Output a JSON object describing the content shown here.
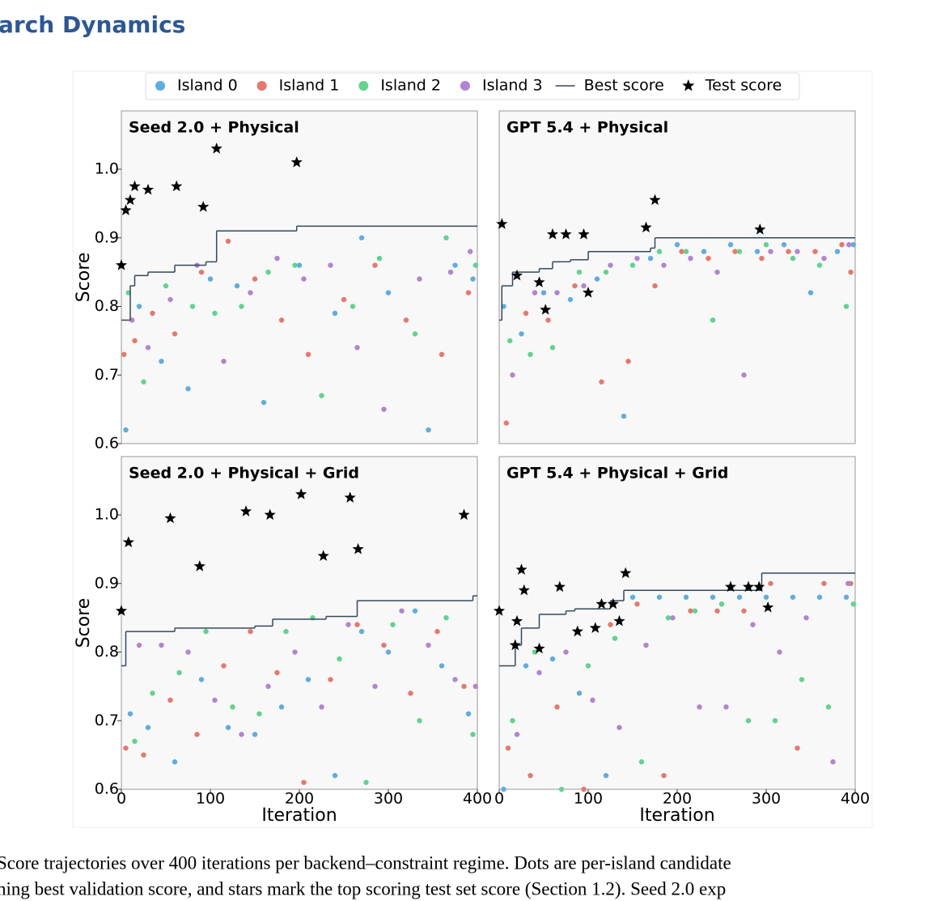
{
  "header": {
    "title": "arch Dynamics"
  },
  "chart_data": [
    {
      "type": "scatter",
      "title": "Seed 2.0 + Physical",
      "xlim": [
        0,
        400
      ],
      "ylim": [
        0.6,
        1.085
      ],
      "yticks": [
        0.6,
        0.7,
        0.8,
        0.9,
        {
          "value": 1,
          "label": "1.0"
        }
      ],
      "ylabel": "Score",
      "series": [
        {
          "name": "Island 0",
          "color": "#5dade2",
          "x": [
            5,
            20,
            45,
            75,
            100,
            130,
            160,
            200,
            240,
            270,
            300,
            345,
            375,
            395
          ],
          "values": [
            0.62,
            0.8,
            0.72,
            0.68,
            0.84,
            0.83,
            0.66,
            0.86,
            0.79,
            0.9,
            0.82,
            0.62,
            0.86,
            0.84
          ]
        },
        {
          "name": "Island 1",
          "color": "#e8776b",
          "x": [
            3,
            15,
            35,
            60,
            90,
            120,
            150,
            180,
            210,
            250,
            285,
            320,
            360,
            390
          ],
          "values": [
            0.73,
            0.75,
            0.79,
            0.76,
            0.85,
            0.895,
            0.84,
            0.78,
            0.73,
            0.81,
            0.86,
            0.78,
            0.73,
            0.82
          ]
        },
        {
          "name": "Island 2",
          "color": "#5fd48c",
          "x": [
            8,
            25,
            50,
            80,
            105,
            135,
            165,
            195,
            225,
            260,
            290,
            330,
            365,
            398
          ],
          "values": [
            0.82,
            0.69,
            0.83,
            0.8,
            0.79,
            0.8,
            0.85,
            0.86,
            0.67,
            0.8,
            0.87,
            0.76,
            0.9,
            0.86
          ]
        },
        {
          "name": "Island 3",
          "color": "#b183d4",
          "x": [
            12,
            30,
            55,
            85,
            115,
            145,
            175,
            205,
            235,
            265,
            295,
            335,
            370,
            392
          ],
          "values": [
            0.78,
            0.74,
            0.81,
            0.86,
            0.72,
            0.82,
            0.87,
            0.84,
            0.86,
            0.74,
            0.65,
            0.84,
            0.85,
            0.88
          ]
        },
        {
          "name": "Best score",
          "color": "#34495e",
          "mark": "step",
          "x": [
            0,
            10,
            15,
            30,
            60,
            95,
            107,
            197
          ],
          "values": [
            0.78,
            0.83,
            0.845,
            0.85,
            0.86,
            0.865,
            0.91,
            0.917
          ]
        },
        {
          "name": "Test score",
          "color": "#000000",
          "mark": "star",
          "x": [
            0,
            5,
            10,
            15,
            30,
            62,
            92,
            107,
            197
          ],
          "values": [
            0.86,
            0.94,
            0.955,
            0.975,
            0.97,
            0.975,
            0.945,
            1.03,
            1.01
          ]
        }
      ]
    },
    {
      "type": "scatter",
      "title": "GPT 5.4 + Physical",
      "xlim": [
        0,
        400
      ],
      "ylim": [
        0.6,
        1.085
      ],
      "series": [
        {
          "name": "Island 0",
          "color": "#5dade2",
          "x": [
            5,
            25,
            50,
            80,
            110,
            140,
            170,
            200,
            230,
            260,
            290,
            320,
            350,
            380,
            398
          ],
          "values": [
            0.8,
            0.76,
            0.82,
            0.81,
            0.84,
            0.64,
            0.87,
            0.89,
            0.88,
            0.89,
            0.88,
            0.89,
            0.82,
            0.88,
            0.89
          ]
        },
        {
          "name": "Island 1",
          "color": "#e8776b",
          "x": [
            8,
            30,
            55,
            85,
            115,
            145,
            175,
            205,
            235,
            265,
            295,
            325,
            355,
            385,
            395
          ],
          "values": [
            0.63,
            0.79,
            0.78,
            0.83,
            0.69,
            0.72,
            0.83,
            0.88,
            0.87,
            0.88,
            0.87,
            0.88,
            0.88,
            0.89,
            0.85
          ]
        },
        {
          "name": "Island 2",
          "color": "#5fd48c",
          "x": [
            12,
            35,
            60,
            90,
            120,
            150,
            180,
            210,
            240,
            270,
            300,
            330,
            360,
            390
          ],
          "values": [
            0.75,
            0.73,
            0.74,
            0.85,
            0.85,
            0.86,
            0.88,
            0.88,
            0.78,
            0.88,
            0.89,
            0.87,
            0.86,
            0.8
          ]
        },
        {
          "name": "Island 3",
          "color": "#b183d4",
          "x": [
            15,
            40,
            65,
            95,
            125,
            155,
            185,
            215,
            245,
            275,
            305,
            335,
            365,
            393
          ],
          "values": [
            0.7,
            0.82,
            0.82,
            0.83,
            0.86,
            0.87,
            0.86,
            0.87,
            0.85,
            0.7,
            0.88,
            0.88,
            0.87,
            0.89
          ]
        },
        {
          "name": "Best score",
          "color": "#34495e",
          "mark": "step",
          "x": [
            0,
            3,
            15,
            45,
            60,
            80,
            100,
            170,
            175
          ],
          "values": [
            0.78,
            0.83,
            0.85,
            0.855,
            0.865,
            0.868,
            0.88,
            0.885,
            0.9
          ]
        },
        {
          "name": "Test score",
          "color": "#000000",
          "mark": "star",
          "x": [
            3,
            20,
            45,
            52,
            60,
            75,
            95,
            100,
            165,
            175,
            293
          ],
          "values": [
            0.92,
            0.845,
            0.835,
            0.795,
            0.905,
            0.905,
            0.905,
            0.82,
            0.915,
            0.955,
            0.912
          ]
        }
      ]
    },
    {
      "type": "scatter",
      "title": "Seed 2.0 + Physical + Grid",
      "xlim": [
        0,
        400
      ],
      "ylim": [
        0.6,
        1.085
      ],
      "yticks": [
        0.6,
        0.7,
        0.8,
        0.9,
        {
          "value": 1,
          "label": "1.0"
        }
      ],
      "ylabel": "Score",
      "xticks": [
        0,
        100,
        200,
        300,
        400
      ],
      "xlabel": "Iteration",
      "series": [
        {
          "name": "Island 0",
          "color": "#5dade2",
          "x": [
            10,
            30,
            60,
            90,
            120,
            150,
            180,
            210,
            240,
            270,
            300,
            330,
            360,
            390
          ],
          "values": [
            0.71,
            0.69,
            0.64,
            0.76,
            0.69,
            0.68,
            0.72,
            0.76,
            0.62,
            0.83,
            0.8,
            0.86,
            0.78,
            0.71
          ]
        },
        {
          "name": "Island 1",
          "color": "#e8776b",
          "x": [
            5,
            25,
            55,
            85,
            115,
            145,
            175,
            205,
            235,
            265,
            295,
            325,
            355,
            385
          ],
          "values": [
            0.66,
            0.65,
            0.73,
            0.68,
            0.78,
            0.83,
            0.77,
            0.61,
            0.76,
            0.84,
            0.81,
            0.74,
            0.83,
            0.75
          ]
        },
        {
          "name": "Island 2",
          "color": "#5fd48c",
          "x": [
            15,
            35,
            65,
            95,
            125,
            155,
            185,
            215,
            245,
            275,
            305,
            335,
            365,
            395
          ],
          "values": [
            0.67,
            0.74,
            0.77,
            0.83,
            0.72,
            0.71,
            0.83,
            0.85,
            0.79,
            0.61,
            0.84,
            0.7,
            0.85,
            0.68
          ]
        },
        {
          "name": "Island 3",
          "color": "#b183d4",
          "x": [
            20,
            45,
            75,
            105,
            135,
            165,
            195,
            225,
            255,
            285,
            315,
            345,
            375,
            398
          ],
          "values": [
            0.81,
            0.81,
            0.8,
            0.73,
            0.68,
            0.75,
            0.8,
            0.72,
            0.84,
            0.75,
            0.86,
            0.81,
            0.76,
            0.75
          ]
        },
        {
          "name": "Best score",
          "color": "#34495e",
          "mark": "step",
          "x": [
            0,
            5,
            60,
            150,
            170,
            230,
            265,
            395
          ],
          "values": [
            0.78,
            0.83,
            0.835,
            0.838,
            0.848,
            0.852,
            0.875,
            0.882
          ]
        },
        {
          "name": "Test score",
          "color": "#000000",
          "mark": "star",
          "x": [
            0,
            8,
            55,
            88,
            140,
            167,
            202,
            227,
            257,
            266,
            385
          ],
          "values": [
            0.86,
            0.96,
            0.995,
            0.925,
            1.005,
            1.0,
            1.03,
            0.94,
            1.025,
            0.95,
            1.0
          ]
        }
      ]
    },
    {
      "type": "scatter",
      "title": "GPT 5.4 + Physical + Grid",
      "xlim": [
        0,
        400
      ],
      "ylim": [
        0.6,
        1.085
      ],
      "xticks": [
        0,
        100,
        200,
        300,
        400
      ],
      "xlabel": "Iteration",
      "series": [
        {
          "name": "Island 0",
          "color": "#5dade2",
          "x": [
            5,
            30,
            60,
            90,
            120,
            150,
            180,
            210,
            240,
            270,
            300,
            330,
            360,
            390
          ],
          "values": [
            0.6,
            0.78,
            0.79,
            0.74,
            0.62,
            0.88,
            0.88,
            0.88,
            0.88,
            0.88,
            0.88,
            0.88,
            0.88,
            0.88
          ]
        },
        {
          "name": "Island 1",
          "color": "#e8776b",
          "x": [
            10,
            35,
            65,
            95,
            125,
            155,
            185,
            215,
            245,
            275,
            305,
            335,
            365,
            395
          ],
          "values": [
            0.66,
            0.62,
            0.72,
            0.6,
            0.84,
            0.87,
            0.62,
            0.86,
            0.86,
            0.86,
            0.9,
            0.66,
            0.9,
            0.9
          ]
        },
        {
          "name": "Island 2",
          "color": "#5fd48c",
          "x": [
            15,
            40,
            70,
            100,
            130,
            160,
            190,
            220,
            250,
            280,
            310,
            340,
            370,
            398
          ],
          "values": [
            0.7,
            0.8,
            0.6,
            0.78,
            0.82,
            0.64,
            0.85,
            0.86,
            0.87,
            0.7,
            0.7,
            0.76,
            0.72,
            0.87
          ]
        },
        {
          "name": "Island 3",
          "color": "#b183d4",
          "x": [
            20,
            45,
            75,
            105,
            135,
            165,
            195,
            225,
            255,
            285,
            315,
            345,
            375,
            392
          ],
          "values": [
            0.68,
            0.77,
            0.8,
            0.73,
            0.69,
            0.81,
            0.85,
            0.72,
            0.72,
            0.84,
            0.8,
            0.85,
            0.64,
            0.9
          ]
        },
        {
          "name": "Best score",
          "color": "#34495e",
          "mark": "step",
          "x": [
            0,
            18,
            25,
            45,
            75,
            85,
            125,
            140,
            295
          ],
          "values": [
            0.78,
            0.81,
            0.835,
            0.855,
            0.86,
            0.863,
            0.875,
            0.89,
            0.915
          ]
        },
        {
          "name": "Test score",
          "color": "#000000",
          "mark": "star",
          "x": [
            0,
            18,
            20,
            25,
            28,
            45,
            68,
            88,
            108,
            115,
            128,
            135,
            142,
            260,
            280,
            292,
            302
          ],
          "values": [
            0.86,
            0.81,
            0.845,
            0.92,
            0.89,
            0.805,
            0.895,
            0.83,
            0.835,
            0.87,
            0.87,
            0.845,
            0.915,
            0.895,
            0.895,
            0.895,
            0.865
          ]
        }
      ]
    }
  ],
  "caption": {
    "lines": [
      "Score trajectories over 400 iterations per backend–constraint regime. Dots are per-island candidate",
      "ning best validation score, and stars mark the top scoring test set score (Section 1.2). Seed 2.0 exp"
    ]
  }
}
